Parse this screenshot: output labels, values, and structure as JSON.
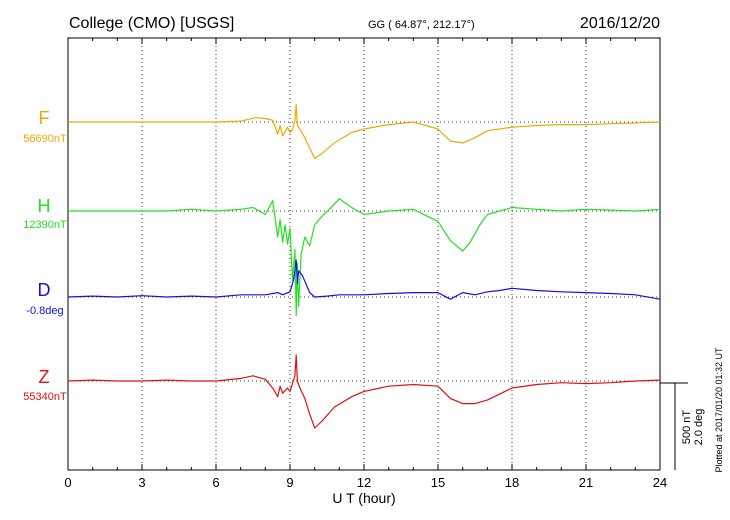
{
  "header": {
    "station": "College (CMO)  [USGS]",
    "coords": "GG ( 64.87°, 212.17°)",
    "date": "2016/12/20"
  },
  "side_note": "Plotted at 2017/01/20 01:32 UT",
  "scale_bar": {
    "label1": "500 nT",
    "label2": "2.0 deg"
  },
  "chart_data": {
    "type": "line",
    "title": "College (CMO)  [USGS]",
    "xlabel": "U T (hour)",
    "xlim": [
      0,
      24
    ],
    "xticks": [
      "0",
      "3",
      "6",
      "9",
      "12",
      "15",
      "18",
      "21",
      "24"
    ],
    "grid": "dotted vertical every 3 hours; dotted baseline per component",
    "series": [
      {
        "name": "F",
        "baseline_label": "56690nT",
        "color": "#f0a800",
        "unit": "nT",
        "baseline": 56690,
        "x": [
          0,
          1,
          2,
          3,
          4,
          5,
          6,
          7,
          7.3,
          7.6,
          8.0,
          8.3,
          8.5,
          8.6,
          8.7,
          8.9,
          9.0,
          9.1,
          9.2,
          9.25,
          9.3,
          9.4,
          9.6,
          9.8,
          10.0,
          10.3,
          10.8,
          11.5,
          12,
          13,
          14,
          15,
          15.5,
          16,
          16.5,
          17,
          18,
          19,
          20,
          21,
          22,
          23,
          24
        ],
        "y": [
          0,
          0,
          0,
          0,
          0,
          0,
          0,
          5,
          15,
          25,
          20,
          10,
          -70,
          -20,
          -80,
          -30,
          -60,
          -45,
          10,
          100,
          -20,
          -40,
          -90,
          -150,
          -210,
          -180,
          -120,
          -60,
          -40,
          -15,
          0,
          -40,
          -110,
          -120,
          -90,
          -50,
          -30,
          -20,
          -15,
          -15,
          -10,
          -5,
          0
        ]
      },
      {
        "name": "H",
        "baseline_label": "12390nT",
        "color": "#22e022",
        "unit": "nT",
        "baseline": 12390,
        "x": [
          0,
          1,
          2,
          3,
          4,
          5,
          6,
          7,
          7.5,
          8.0,
          8.3,
          8.5,
          8.6,
          8.7,
          8.8,
          8.9,
          9.0,
          9.1,
          9.2,
          9.25,
          9.3,
          9.35,
          9.45,
          9.6,
          9.8,
          10.0,
          10.3,
          10.6,
          11.0,
          11.5,
          12,
          13,
          14,
          15,
          15.5,
          16,
          16.3,
          16.7,
          17,
          18,
          19,
          20,
          21,
          22,
          23,
          24
        ],
        "y": [
          0,
          0,
          0,
          0,
          0,
          10,
          0,
          10,
          20,
          -20,
          60,
          -150,
          -50,
          -180,
          -80,
          -190,
          -100,
          -400,
          -220,
          -600,
          -300,
          -550,
          -250,
          -150,
          -200,
          -80,
          -30,
          10,
          70,
          20,
          -20,
          0,
          10,
          -60,
          -170,
          -230,
          -180,
          -80,
          -20,
          20,
          10,
          0,
          10,
          5,
          0,
          10
        ]
      },
      {
        "name": "D",
        "baseline_label": "-0.8deg",
        "color": "#1010e0",
        "unit": "deg",
        "baseline": -0.8,
        "x": [
          0,
          1,
          2,
          3,
          4,
          5,
          6,
          7,
          8,
          8.5,
          8.7,
          9.0,
          9.15,
          9.25,
          9.3,
          9.35,
          9.5,
          9.8,
          10.0,
          10.5,
          11,
          12,
          13,
          14,
          15,
          15.5,
          16,
          16.5,
          17,
          17.5,
          18,
          19,
          20,
          21,
          22,
          23,
          24
        ],
        "y": [
          0,
          0.02,
          0,
          0.03,
          0,
          0.02,
          0,
          0.05,
          0.05,
          0.1,
          0.05,
          0.12,
          0.4,
          0.85,
          0.3,
          0.6,
          0.5,
          0.1,
          0,
          0.02,
          0.05,
          0.05,
          0.08,
          0.1,
          0.1,
          -0.05,
          0.1,
          0.05,
          0.12,
          0.15,
          0.2,
          0.15,
          0.12,
          0.1,
          0.08,
          0.05,
          -0.05
        ]
      },
      {
        "name": "Z",
        "baseline_label": "55340nT",
        "color": "#e01010",
        "unit": "nT",
        "baseline": 55340,
        "x": [
          0,
          1,
          2,
          3,
          4,
          5,
          6,
          7,
          7.5,
          8.0,
          8.3,
          8.5,
          8.6,
          8.7,
          8.9,
          9.0,
          9.2,
          9.25,
          9.3,
          9.4,
          9.6,
          9.8,
          10.0,
          10.3,
          10.8,
          11.5,
          12,
          13,
          14,
          15,
          15.5,
          16,
          16.5,
          17,
          18,
          19,
          20,
          21,
          22,
          23,
          24
        ],
        "y": [
          0,
          5,
          0,
          0,
          5,
          0,
          0,
          15,
          30,
          10,
          -40,
          -90,
          -30,
          -70,
          -40,
          -60,
          30,
          150,
          0,
          -40,
          -100,
          -190,
          -270,
          -230,
          -150,
          -90,
          -60,
          -30,
          -20,
          -30,
          -100,
          -130,
          -130,
          -110,
          -40,
          -20,
          -10,
          -15,
          -10,
          0,
          5
        ]
      }
    ]
  }
}
